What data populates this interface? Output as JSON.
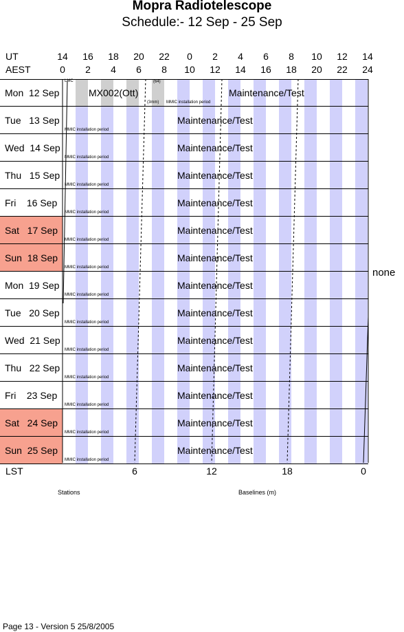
{
  "title": "Mopra Radiotelescope",
  "subtitle": "Schedule:- 12 Sep - 25 Sep",
  "axes": {
    "ut_label": "UT",
    "aest_label": "AEST",
    "ut_ticks": [
      "14",
      "16",
      "18",
      "20",
      "22",
      "0",
      "2",
      "4",
      "6",
      "8",
      "10",
      "12",
      "14"
    ],
    "aest_ticks": [
      "0",
      "2",
      "4",
      "6",
      "8",
      "10",
      "12",
      "14",
      "16",
      "18",
      "20",
      "22",
      "24"
    ],
    "lst_label": "LST",
    "lst_ticks": [
      "6",
      "12",
      "18",
      "0"
    ]
  },
  "days": [
    {
      "label": "Mon  12 Sep",
      "weekend": false,
      "text": "Maintenance/Test",
      "note": ""
    },
    {
      "label": "Tue   13 Sep",
      "weekend": false,
      "text": "Maintenance/Test",
      "note": "MMIC installation period"
    },
    {
      "label": "Wed  14 Sep",
      "weekend": false,
      "text": "Maintenance/Test",
      "note": "MMIC installation period"
    },
    {
      "label": "Thu   15 Sep",
      "weekend": false,
      "text": "Maintenance/Test",
      "note": "MMIC installation period"
    },
    {
      "label": "Fri    16 Sep",
      "weekend": false,
      "text": "Maintenance/Test",
      "note": "MMIC installation period"
    },
    {
      "label": "Sat   17 Sep",
      "weekend": true,
      "text": "Maintenance/Test",
      "note": "MMIC installation period"
    },
    {
      "label": "Sun  18 Sep",
      "weekend": true,
      "text": "Maintenance/Test",
      "note": "MMIC installation period"
    },
    {
      "label": "Mon  19 Sep",
      "weekend": false,
      "text": "Maintenance/Test",
      "note": "MMIC installation period"
    },
    {
      "label": "Tue   20 Sep",
      "weekend": false,
      "text": "Maintenance/Test",
      "note": "MMIC installation period"
    },
    {
      "label": "Wed  21 Sep",
      "weekend": false,
      "text": "Maintenance/Test",
      "note": "MMIC installation period"
    },
    {
      "label": "Thu   22 Sep",
      "weekend": false,
      "text": "Maintenance/Test",
      "note": "MMIC installation period"
    },
    {
      "label": "Fri    23 Sep",
      "weekend": false,
      "text": "Maintenance/Test",
      "note": "MMIC installation period"
    },
    {
      "label": "Sat   24 Sep",
      "weekend": true,
      "text": "Maintenance/Test",
      "note": "MMIC installation period"
    },
    {
      "label": "Sun  25 Sep",
      "weekend": true,
      "text": "Maintenance/Test",
      "note": "MMIC installation period"
    }
  ],
  "first_day": {
    "lmc": "LMC",
    "project": "MX002(Ott)",
    "count": "(64)",
    "band": "(3mm)",
    "note": "MMIC installation period"
  },
  "side_label": "none",
  "stations_label": "Stations",
  "baselines_label": "Baselines (m)",
  "footer": "Page 13 - Version 5  25/8/2005",
  "colors": {
    "stripe": "#d1d1fb",
    "weekend": "#f7a18f",
    "grey": "#cfcfcf"
  }
}
